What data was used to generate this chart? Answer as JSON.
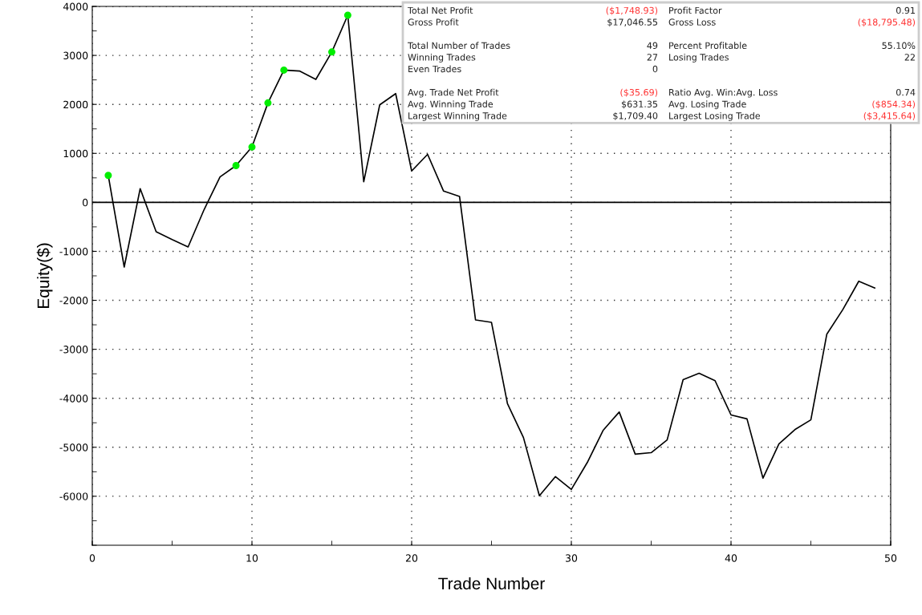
{
  "chart_data": {
    "type": "line",
    "xlabel": "Trade Number",
    "ylabel": "Equity($)",
    "xlim": [
      0,
      50
    ],
    "xticks": [
      0,
      10,
      20,
      30,
      40,
      50
    ],
    "ylim": [
      -7000,
      4000
    ],
    "yticks": [
      -6000,
      -5000,
      -4000,
      -3000,
      -2000,
      -1000,
      0,
      1000,
      2000,
      3000,
      4000
    ],
    "grid": true,
    "legend": false,
    "marker": "none",
    "line_style": "solid",
    "ref_lines": [
      {
        "axis": "y",
        "value": 0,
        "color": "#000000",
        "line_style": "solid"
      }
    ],
    "series": [
      {
        "color": "#000000",
        "x": [
          1,
          2,
          3,
          4,
          5,
          6,
          7,
          8,
          9,
          10,
          11,
          12,
          13,
          14,
          15,
          16,
          17,
          18,
          19,
          20,
          21,
          22,
          23,
          24,
          25,
          26,
          27,
          28,
          29,
          30,
          31,
          32,
          33,
          34,
          35,
          36,
          37,
          38,
          39,
          40,
          41,
          42,
          43,
          44,
          45,
          46,
          47,
          48,
          49
        ],
        "values": [
          550,
          -1320,
          280,
          -600,
          -760,
          -910,
          -150,
          520,
          750,
          1130,
          2030,
          2700,
          2680,
          2510,
          3070,
          3820,
          420,
          1990,
          2220,
          640,
          980,
          230,
          120,
          -2400,
          -2450,
          -4110,
          -4800,
          -5990,
          -5600,
          -5860,
          -5310,
          -4650,
          -4280,
          -5140,
          -5110,
          -4850,
          -3620,
          -3490,
          -3640,
          -4340,
          -4420,
          -5630,
          -4930,
          -4640,
          -4440,
          -2690,
          -2190,
          -1610,
          -1750
        ]
      },
      {
        "type": "scatter",
        "color": "#00ee00",
        "marker": "circle",
        "x": [
          1,
          9,
          10,
          11,
          12,
          15,
          16
        ],
        "values": [
          550,
          750,
          1130,
          2030,
          2700,
          3070,
          3820
        ]
      }
    ],
    "annotations": [
      "Total Net Profit",
      "($1,748.93)",
      "Gross Profit",
      "$17,046.55",
      "Total Number of Trades",
      "49",
      "Winning Trades",
      "27",
      "Even Trades",
      "0",
      "Avg. Trade Net Profit",
      "($35.69)",
      "Avg. Winning Trade",
      "$631.35",
      "Largest Winning Trade",
      "$1,709.40",
      "Profit Factor",
      "0.91",
      "Gross Loss",
      "($18,795.48)",
      "Percent Profitable",
      "55.10%",
      "Losing Trades",
      "22",
      "Ratio Avg. Win:Avg. Loss",
      "0.74",
      "Avg. Losing Trade",
      "($854.34)",
      "Largest Losing Trade",
      "($3,415.64)"
    ]
  }
}
